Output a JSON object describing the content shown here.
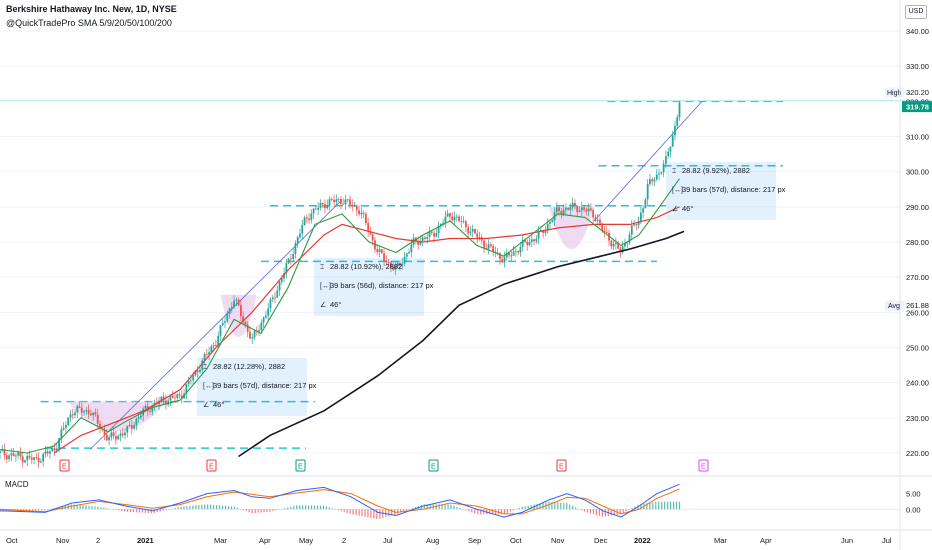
{
  "header": {
    "title": "Berkshire Hathaway Inc. New, 1D, NYSE",
    "indicator": "@QuickTradePro SMA 5/9/20/50/100/200",
    "currency": "USD"
  },
  "macd_label": "MACD",
  "price_axis": {
    "ticks": [
      "340.00",
      "330.00",
      "320.00",
      "310.00",
      "300.00",
      "290.00",
      "280.00",
      "270.00",
      "260.00",
      "250.00",
      "240.00",
      "230.00",
      "220.00"
    ],
    "high_label": "High",
    "high_value": "320.20",
    "last_value": "319.78",
    "avg_label": "Avg",
    "avg_value": "261.88"
  },
  "macd_axis": {
    "ticks": [
      "5.00",
      "0.00"
    ]
  },
  "time_axis": {
    "ticks": [
      "Oct",
      "Nov",
      "2",
      "2021",
      "Mar",
      "Apr",
      "May",
      "2",
      "Jul",
      "Aug",
      "Sep",
      "Oct",
      "Nov",
      "Dec",
      "2022",
      "Mar",
      "Apr",
      "Jun",
      "Jul"
    ]
  },
  "earnings_markers": [
    {
      "label": "E",
      "color": "#f23645"
    },
    {
      "label": "E",
      "color": "#f23645"
    },
    {
      "label": "E",
      "color": "#089981"
    },
    {
      "label": "E",
      "color": "#089981"
    },
    {
      "label": "E",
      "color": "#f23645"
    },
    {
      "label": "E",
      "color": "#e040fb"
    }
  ],
  "measure_boxes": [
    {
      "range": "28.82 (12.28%), 2882",
      "bars": "39 bars (57d), distance: 217 px",
      "angle": "46°"
    },
    {
      "range": "28.82 (10.92%), 2882",
      "bars": "39 bars (56d), distance: 217 px",
      "angle": "46°"
    },
    {
      "range": "28.82 (9.92%), 2882",
      "bars": "39 bars (57d), distance: 217 px",
      "angle": "46°"
    }
  ],
  "colors": {
    "up": "#26a69a",
    "down": "#ef5350",
    "sma_green": "#2e9b3a",
    "sma_red": "#e53935",
    "sma_black": "#131722",
    "dash": "#26c6da",
    "trend": "#5b6bd6",
    "cup": "#e1bee7",
    "macd_line": "#2962ff",
    "signal_line": "#ff6d00",
    "hline": "#b2ebf2",
    "last_bg": "#089981"
  },
  "chart_data": {
    "type": "candlestick",
    "price_range": [
      216,
      344
    ],
    "levels": {
      "high": 320.2,
      "last": 319.78,
      "avg": 261.88
    },
    "horizontal_levels": [
      221.4,
      234.6,
      274.5,
      290.3,
      301.7,
      320.0
    ],
    "sma_200": [
      [
        0.265,
        219
      ],
      [
        0.3,
        225
      ],
      [
        0.36,
        232
      ],
      [
        0.42,
        242
      ],
      [
        0.47,
        252
      ],
      [
        0.51,
        262
      ],
      [
        0.56,
        268
      ],
      [
        0.62,
        273
      ],
      [
        0.66,
        275.5
      ],
      [
        0.7,
        278
      ],
      [
        0.74,
        281
      ],
      [
        0.76,
        283
      ]
    ],
    "sma_50": [
      [
        0.06,
        220
      ],
      [
        0.09,
        225
      ],
      [
        0.12,
        228
      ],
      [
        0.16,
        232
      ],
      [
        0.2,
        238
      ],
      [
        0.24,
        250
      ],
      [
        0.28,
        260
      ],
      [
        0.32,
        272
      ],
      [
        0.36,
        282
      ],
      [
        0.38,
        285
      ],
      [
        0.41,
        283
      ],
      [
        0.44,
        281
      ],
      [
        0.47,
        280
      ],
      [
        0.5,
        281
      ],
      [
        0.54,
        281
      ],
      [
        0.58,
        282
      ],
      [
        0.62,
        284
      ],
      [
        0.66,
        285
      ],
      [
        0.7,
        285
      ],
      [
        0.73,
        287
      ],
      [
        0.755,
        290
      ]
    ],
    "sma_20": [
      [
        0.0,
        221
      ],
      [
        0.03,
        220
      ],
      [
        0.06,
        222
      ],
      [
        0.09,
        230
      ],
      [
        0.12,
        226
      ],
      [
        0.14,
        229
      ],
      [
        0.17,
        233
      ],
      [
        0.2,
        235
      ],
      [
        0.23,
        244
      ],
      [
        0.26,
        258
      ],
      [
        0.29,
        254
      ],
      [
        0.32,
        267
      ],
      [
        0.35,
        285
      ],
      [
        0.38,
        288
      ],
      [
        0.41,
        280
      ],
      [
        0.44,
        277
      ],
      [
        0.47,
        282
      ],
      [
        0.5,
        286
      ],
      [
        0.53,
        279
      ],
      [
        0.56,
        276
      ],
      [
        0.59,
        282
      ],
      [
        0.62,
        288
      ],
      [
        0.65,
        287
      ],
      [
        0.67,
        283
      ],
      [
        0.69,
        279
      ],
      [
        0.71,
        282
      ],
      [
        0.73,
        289
      ],
      [
        0.755,
        298
      ]
    ],
    "close": [
      [
        0.0,
        220
      ],
      [
        0.02,
        219
      ],
      [
        0.04,
        218
      ],
      [
        0.06,
        221
      ],
      [
        0.08,
        232
      ],
      [
        0.1,
        232
      ],
      [
        0.12,
        224
      ],
      [
        0.14,
        226
      ],
      [
        0.16,
        232
      ],
      [
        0.18,
        235
      ],
      [
        0.2,
        236
      ],
      [
        0.22,
        244
      ],
      [
        0.24,
        252
      ],
      [
        0.26,
        264
      ],
      [
        0.28,
        252
      ],
      [
        0.3,
        262
      ],
      [
        0.32,
        274
      ],
      [
        0.34,
        287
      ],
      [
        0.36,
        291
      ],
      [
        0.38,
        292
      ],
      [
        0.4,
        289
      ],
      [
        0.42,
        277
      ],
      [
        0.44,
        272
      ],
      [
        0.46,
        280
      ],
      [
        0.48,
        282
      ],
      [
        0.5,
        288
      ],
      [
        0.52,
        284
      ],
      [
        0.54,
        279
      ],
      [
        0.56,
        275
      ],
      [
        0.58,
        279
      ],
      [
        0.6,
        282
      ],
      [
        0.62,
        289
      ],
      [
        0.64,
        290
      ],
      [
        0.66,
        288
      ],
      [
        0.67,
        283
      ],
      [
        0.68,
        280
      ],
      [
        0.69,
        277
      ],
      [
        0.7,
        283
      ],
      [
        0.71,
        286
      ],
      [
        0.72,
        296
      ],
      [
        0.73,
        299
      ],
      [
        0.74,
        303
      ],
      [
        0.75,
        313
      ],
      [
        0.755,
        319.78
      ]
    ],
    "macd": [
      [
        0.0,
        -0.5
      ],
      [
        0.05,
        -1
      ],
      [
        0.08,
        2
      ],
      [
        0.11,
        3
      ],
      [
        0.14,
        1
      ],
      [
        0.17,
        -0.5
      ],
      [
        0.2,
        2
      ],
      [
        0.23,
        5
      ],
      [
        0.26,
        6
      ],
      [
        0.28,
        4
      ],
      [
        0.3,
        3.5
      ],
      [
        0.33,
        6
      ],
      [
        0.36,
        7
      ],
      [
        0.39,
        4
      ],
      [
        0.42,
        -1
      ],
      [
        0.44,
        -2
      ],
      [
        0.47,
        1
      ],
      [
        0.5,
        3
      ],
      [
        0.53,
        0
      ],
      [
        0.56,
        -2.5
      ],
      [
        0.58,
        -1
      ],
      [
        0.61,
        3
      ],
      [
        0.63,
        5
      ],
      [
        0.65,
        3
      ],
      [
        0.67,
        -0.5
      ],
      [
        0.69,
        -2.5
      ],
      [
        0.71,
        1
      ],
      [
        0.73,
        5
      ],
      [
        0.755,
        8
      ]
    ],
    "signal": [
      [
        0.0,
        0
      ],
      [
        0.05,
        -0.8
      ],
      [
        0.08,
        1
      ],
      [
        0.11,
        2.5
      ],
      [
        0.14,
        1.5
      ],
      [
        0.17,
        0.3
      ],
      [
        0.2,
        1.5
      ],
      [
        0.23,
        4
      ],
      [
        0.26,
        5.5
      ],
      [
        0.28,
        4.8
      ],
      [
        0.3,
        4
      ],
      [
        0.33,
        5.2
      ],
      [
        0.36,
        6.3
      ],
      [
        0.39,
        5
      ],
      [
        0.42,
        1
      ],
      [
        0.44,
        -1
      ],
      [
        0.47,
        0
      ],
      [
        0.5,
        2
      ],
      [
        0.53,
        1
      ],
      [
        0.56,
        -1.5
      ],
      [
        0.58,
        -1.5
      ],
      [
        0.61,
        1.5
      ],
      [
        0.63,
        3.8
      ],
      [
        0.65,
        3.5
      ],
      [
        0.67,
        1
      ],
      [
        0.69,
        -1.5
      ],
      [
        0.71,
        0
      ],
      [
        0.73,
        3.5
      ],
      [
        0.755,
        6.5
      ]
    ],
    "macd_range": [
      -6,
      10
    ]
  }
}
